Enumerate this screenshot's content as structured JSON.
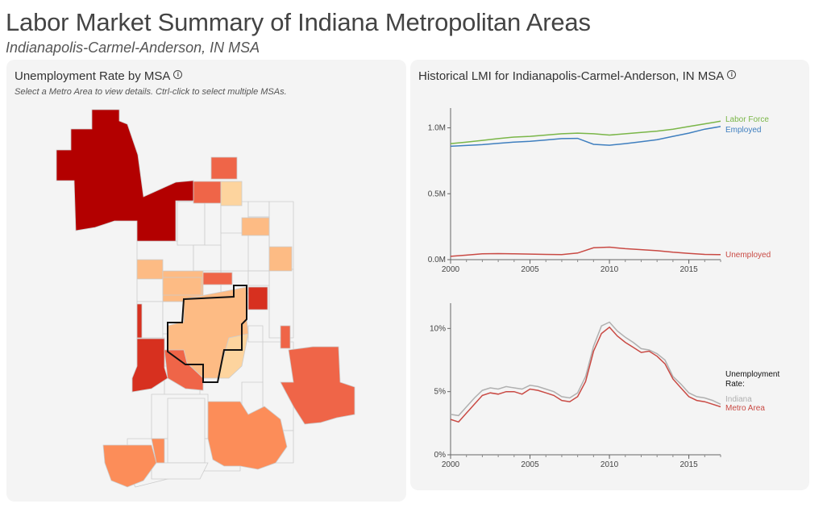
{
  "header": {
    "title": "Labor Market Summary of Indiana Metropolitan Areas",
    "subtitle": "Indianapolis-Carmel-Anderson, IN MSA"
  },
  "map_panel": {
    "title": "Unemployment Rate by MSA",
    "info_icon": "info-icon",
    "hint": "Select a Metro Area to view details. Ctrl-click to select multiple MSAs.",
    "selected_msa": "Indianapolis-Carmel-Anderson, IN MSA",
    "colors": {
      "non_msa": "#f4f4f4",
      "county_stroke": "#cccccc",
      "selected_outline": "#111111",
      "light": "#fdd49e",
      "light_mid": "#fdbb84",
      "mid": "#fc8d59",
      "mid_dark": "#ef6548",
      "dark": "#d7301f",
      "darkest": "#b30000"
    }
  },
  "lmi_panel": {
    "title": "Historical LMI for Indianapolis-Carmel-Anderson, IN MSA",
    "info_icon": "info-icon"
  },
  "chart_data": [
    {
      "type": "line",
      "title": "",
      "xlabel": "",
      "ylabel": "",
      "xlim": [
        2000,
        2017
      ],
      "ylim": [
        0,
        1150000
      ],
      "x_ticks": [
        2000,
        2005,
        2010,
        2015
      ],
      "y_ticks": [
        0,
        500000,
        1000000
      ],
      "y_tick_labels": [
        "0.0M",
        "0.5M",
        "1.0M"
      ],
      "grid": false,
      "legend": "inline-right",
      "series": [
        {
          "name": "Labor Force",
          "color": "#7ab648",
          "points": [
            [
              2000,
              880000
            ],
            [
              2001,
              892000
            ],
            [
              2002,
              905000
            ],
            [
              2003,
              918000
            ],
            [
              2004,
              930000
            ],
            [
              2005,
              935000
            ],
            [
              2006,
              945000
            ],
            [
              2007,
              955000
            ],
            [
              2008,
              960000
            ],
            [
              2009,
              955000
            ],
            [
              2010,
              945000
            ],
            [
              2011,
              955000
            ],
            [
              2012,
              965000
            ],
            [
              2013,
              975000
            ],
            [
              2014,
              990000
            ],
            [
              2015,
              1010000
            ],
            [
              2016,
              1030000
            ],
            [
              2017,
              1050000
            ]
          ]
        },
        {
          "name": "Employed",
          "color": "#3f7fbf",
          "points": [
            [
              2000,
              860000
            ],
            [
              2001,
              866000
            ],
            [
              2002,
              872000
            ],
            [
              2003,
              882000
            ],
            [
              2004,
              892000
            ],
            [
              2005,
              898000
            ],
            [
              2006,
              908000
            ],
            [
              2007,
              918000
            ],
            [
              2008,
              920000
            ],
            [
              2009,
              875000
            ],
            [
              2010,
              868000
            ],
            [
              2011,
              880000
            ],
            [
              2012,
              895000
            ],
            [
              2013,
              910000
            ],
            [
              2014,
              935000
            ],
            [
              2015,
              960000
            ],
            [
              2016,
              990000
            ],
            [
              2017,
              1010000
            ]
          ]
        },
        {
          "name": "Unemployed",
          "color": "#c94a44",
          "points": [
            [
              2000,
              25000
            ],
            [
              2001,
              34000
            ],
            [
              2002,
              44000
            ],
            [
              2003,
              46000
            ],
            [
              2004,
              44000
            ],
            [
              2005,
              42000
            ],
            [
              2006,
              40000
            ],
            [
              2007,
              38000
            ],
            [
              2008,
              50000
            ],
            [
              2009,
              90000
            ],
            [
              2010,
              95000
            ],
            [
              2011,
              83000
            ],
            [
              2012,
              76000
            ],
            [
              2013,
              68000
            ],
            [
              2014,
              56000
            ],
            [
              2015,
              48000
            ],
            [
              2016,
              40000
            ],
            [
              2017,
              38000
            ]
          ]
        }
      ]
    },
    {
      "type": "line",
      "title": "",
      "xlabel": "",
      "ylabel": "",
      "xlim": [
        2000,
        2017
      ],
      "ylim": [
        0,
        12
      ],
      "x_ticks": [
        2000,
        2005,
        2010,
        2015
      ],
      "y_ticks": [
        0,
        5,
        10
      ],
      "y_tick_labels": [
        "0%",
        "5%",
        "10%"
      ],
      "grid": false,
      "legend": "inline-right",
      "legend_title": "Unemployment Rate:",
      "series": [
        {
          "name": "Indiana",
          "color": "#b0b0b0",
          "points": [
            [
              2000,
              3.2
            ],
            [
              2000.5,
              3.1
            ],
            [
              2001,
              3.8
            ],
            [
              2001.5,
              4.5
            ],
            [
              2002,
              5.1
            ],
            [
              2002.5,
              5.3
            ],
            [
              2003,
              5.2
            ],
            [
              2003.5,
              5.4
            ],
            [
              2004,
              5.3
            ],
            [
              2004.5,
              5.2
            ],
            [
              2005,
              5.5
            ],
            [
              2005.5,
              5.4
            ],
            [
              2006,
              5.2
            ],
            [
              2006.5,
              5.0
            ],
            [
              2007,
              4.6
            ],
            [
              2007.5,
              4.5
            ],
            [
              2008,
              4.9
            ],
            [
              2008.5,
              6.2
            ],
            [
              2009,
              8.6
            ],
            [
              2009.5,
              10.2
            ],
            [
              2010,
              10.5
            ],
            [
              2010.5,
              9.8
            ],
            [
              2011,
              9.3
            ],
            [
              2011.5,
              8.9
            ],
            [
              2012,
              8.4
            ],
            [
              2012.5,
              8.3
            ],
            [
              2013,
              8.0
            ],
            [
              2013.5,
              7.5
            ],
            [
              2014,
              6.2
            ],
            [
              2014.5,
              5.6
            ],
            [
              2015,
              4.9
            ],
            [
              2015.5,
              4.6
            ],
            [
              2016,
              4.5
            ],
            [
              2016.5,
              4.3
            ],
            [
              2017,
              4.0
            ]
          ]
        },
        {
          "name": "Metro Area",
          "color": "#c94a44",
          "points": [
            [
              2000,
              2.8
            ],
            [
              2000.5,
              2.6
            ],
            [
              2001,
              3.3
            ],
            [
              2001.5,
              4.0
            ],
            [
              2002,
              4.7
            ],
            [
              2002.5,
              4.9
            ],
            [
              2003,
              4.8
            ],
            [
              2003.5,
              5.0
            ],
            [
              2004,
              5.0
            ],
            [
              2004.5,
              4.8
            ],
            [
              2005,
              5.2
            ],
            [
              2005.5,
              5.1
            ],
            [
              2006,
              4.9
            ],
            [
              2006.5,
              4.7
            ],
            [
              2007,
              4.3
            ],
            [
              2007.5,
              4.2
            ],
            [
              2008,
              4.6
            ],
            [
              2008.5,
              5.8
            ],
            [
              2009,
              8.2
            ],
            [
              2009.5,
              9.6
            ],
            [
              2010,
              10.1
            ],
            [
              2010.5,
              9.4
            ],
            [
              2011,
              8.9
            ],
            [
              2011.5,
              8.5
            ],
            [
              2012,
              8.1
            ],
            [
              2012.5,
              8.2
            ],
            [
              2013,
              7.8
            ],
            [
              2013.5,
              7.2
            ],
            [
              2014,
              6.0
            ],
            [
              2014.5,
              5.3
            ],
            [
              2015,
              4.6
            ],
            [
              2015.5,
              4.3
            ],
            [
              2016,
              4.2
            ],
            [
              2016.5,
              4.0
            ],
            [
              2017,
              3.8
            ]
          ]
        }
      ]
    }
  ]
}
